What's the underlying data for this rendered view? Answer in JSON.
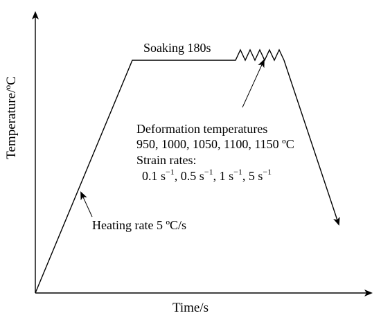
{
  "axes": {
    "y_label": "Temperature/ºC",
    "x_label": "Time/s"
  },
  "annotations": {
    "soaking": "Soaking 180s",
    "deformation_title": "Deformation temperatures",
    "deformation_values": "950, 1000, 1050, 1100, 1150 ºC",
    "strain_title": "Strain rates:",
    "strain_values": [
      "0.1 s",
      "−1",
      ", 0.5 s",
      "−1",
      ", 1 s",
      "−1",
      ", 5 s",
      "−1"
    ],
    "heating": "Heating rate 5 ºC/s"
  },
  "colors": {
    "line": "#000000",
    "background": "#ffffff"
  }
}
